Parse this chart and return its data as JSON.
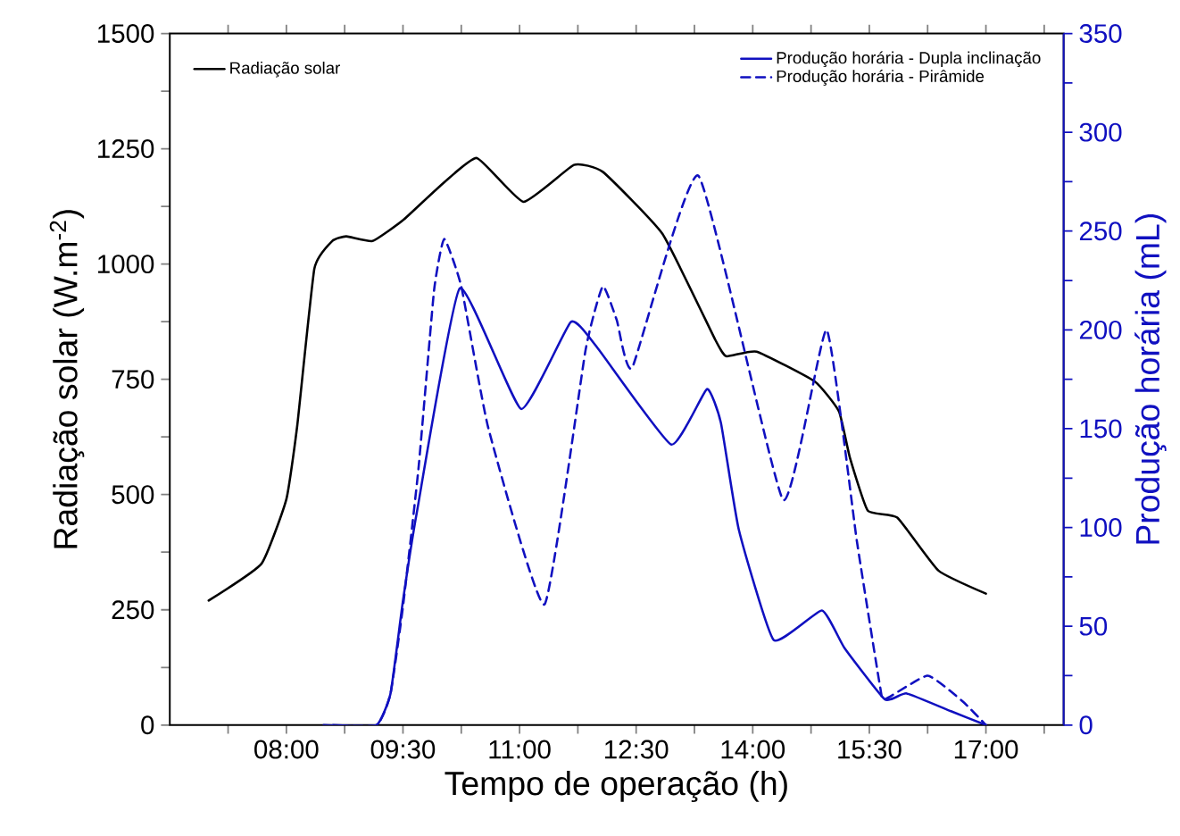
{
  "chart_data": {
    "type": "line",
    "xlabel": "Tempo de operação (h)",
    "ylabel": "Radiação solar (W.m$^{-2}$)",
    "y2label": "Produção horária (mL)",
    "xlim": [
      6.5,
      18
    ],
    "xticks": [
      {
        "value": 7.25,
        "label": null
      },
      {
        "value": 8,
        "label": "08:00"
      },
      {
        "value": 8.75,
        "label": null
      },
      {
        "value": 9.5,
        "label": "09:30"
      },
      {
        "value": 10.25,
        "label": null
      },
      {
        "value": 11,
        "label": "11:00"
      },
      {
        "value": 11.75,
        "label": null
      },
      {
        "value": 12.5,
        "label": "12:30"
      },
      {
        "value": 13.25,
        "label": null
      },
      {
        "value": 14,
        "label": "14:00"
      },
      {
        "value": 14.75,
        "label": null
      },
      {
        "value": 15.5,
        "label": "15:30"
      },
      {
        "value": 16.25,
        "label": null
      },
      {
        "value": 17,
        "label": "17:00"
      },
      {
        "value": 17.75,
        "label": null
      }
    ],
    "ylim": [
      0,
      1500
    ],
    "yticks": [
      0,
      {
        "value": 125,
        "label": null
      },
      250,
      {
        "value": 375,
        "label": null
      },
      500,
      {
        "value": 625,
        "label": null
      },
      750,
      {
        "value": 875,
        "label": null
      },
      1000,
      {
        "value": 1125,
        "label": null
      },
      1250,
      {
        "value": 1375,
        "label": null
      },
      1500
    ],
    "y2lim": [
      0,
      350
    ],
    "y2ticks": [
      0,
      {
        "value": 25,
        "label": null
      },
      50,
      {
        "value": 75,
        "label": null
      },
      100,
      {
        "value": 125,
        "label": null
      },
      150,
      {
        "value": 175,
        "label": null
      },
      200,
      {
        "value": 225,
        "label": null
      },
      250,
      {
        "value": 275,
        "label": null
      },
      300,
      {
        "value": 325,
        "label": null
      },
      350
    ],
    "legend": "top",
    "series": [
      {
        "name": "Radiação solar",
        "color": "#000000",
        "axis": "y",
        "line_style": "solid",
        "x": [
          7.0,
          7.68,
          8.0,
          8.14,
          8.36,
          8.59,
          8.77,
          9.11,
          9.5,
          9.95,
          10.45,
          11.05,
          11.7,
          12.07,
          12.84,
          13.52,
          13.66,
          14.05,
          14.8,
          15.11,
          15.25,
          15.48,
          15.86,
          16.39,
          17.0
        ],
        "values": [
          270,
          350,
          490,
          650,
          990,
          1050,
          1060,
          1050,
          1095,
          1165,
          1230,
          1135,
          1215,
          1200,
          1065,
          835,
          800,
          810,
          745,
          680,
          580,
          465,
          450,
          335,
          285
        ]
      },
      {
        "name": "Produção horária - Dupla inclinação",
        "color": "#1010c0",
        "axis": "y2",
        "line_style": "solid",
        "x": [
          8.6,
          9.16,
          9.34,
          9.5,
          9.68,
          10.23,
          11.02,
          11.66,
          12.0,
          12.95,
          13.41,
          13.59,
          13.82,
          14.27,
          14.89,
          15.18,
          15.7,
          15.98,
          16.55,
          17.0
        ],
        "values": [
          0,
          0,
          16,
          63,
          108,
          221,
          160,
          204,
          191,
          142,
          170,
          153,
          99,
          43,
          58,
          39,
          13,
          16,
          7,
          0
        ]
      },
      {
        "name": "Produção horária - Pirâmide",
        "color": "#1010c0",
        "axis": "y2",
        "line_style": "dashed",
        "x": [
          8.48,
          9.16,
          9.34,
          9.5,
          9.7,
          9.9,
          10.03,
          10.25,
          10.6,
          11.32,
          11.85,
          12.07,
          12.25,
          12.45,
          13.3,
          14.39,
          14.95,
          15.34,
          15.64,
          15.7,
          16.25,
          16.7,
          17.0
        ],
        "values": [
          0,
          0,
          16,
          60,
          130,
          220,
          246,
          222,
          150,
          61,
          190,
          222,
          205,
          181,
          278,
          114,
          200,
          93,
          19,
          13,
          25,
          12,
          0
        ]
      }
    ]
  }
}
